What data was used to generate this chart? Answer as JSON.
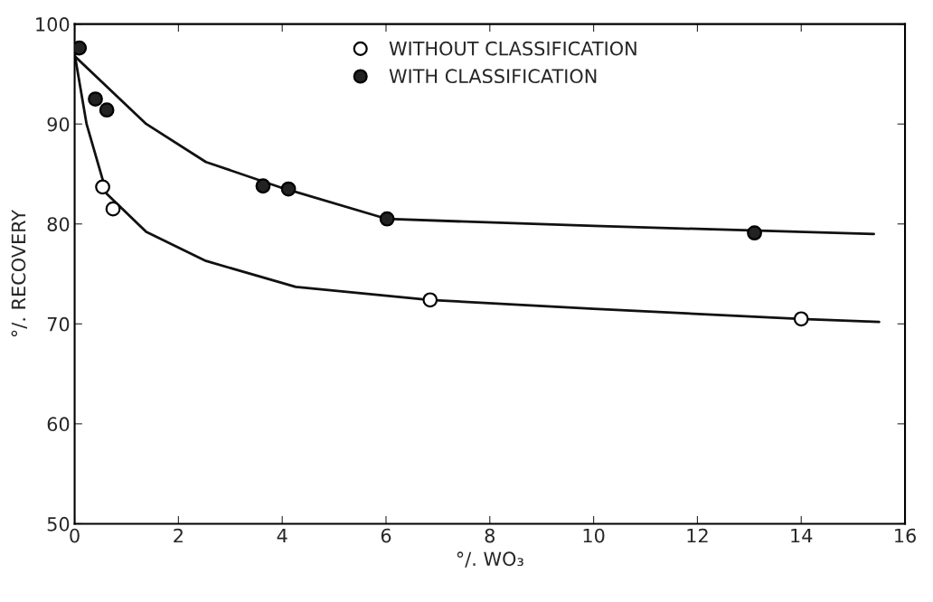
{
  "chart_data": {
    "type": "scatter",
    "xlabel": "°/. WO₃",
    "ylabel": "°/. RECOVERY",
    "xlim": [
      0,
      16
    ],
    "ylim": [
      50,
      100
    ],
    "xticks": [
      0,
      2,
      4,
      6,
      8,
      10,
      12,
      14,
      16
    ],
    "yticks": [
      50,
      60,
      70,
      80,
      90,
      100
    ],
    "grid": false,
    "legend": "top",
    "series": [
      {
        "name": "WITHOUT CLASSIFICATION",
        "marker": "circle",
        "color": "#ffffff",
        "x": [
          0.54,
          0.74,
          6.85,
          14.0
        ],
        "values": [
          83.7,
          81.5,
          72.4,
          70.5
        ]
      },
      {
        "name": "WITH CLASSIFICATION",
        "marker": "circle",
        "color": "#222222",
        "x": [
          0.09,
          0.4,
          0.62,
          3.63,
          4.12,
          6.02,
          13.1
        ],
        "values": [
          97.6,
          92.5,
          91.4,
          83.8,
          83.5,
          80.5,
          79.1
        ]
      },
      {
        "type": "line",
        "color": "#111111",
        "x": [
          0,
          0.23,
          0.62,
          1.38,
          2.53,
          4.26,
          6.85,
          10,
          14.0,
          15.5
        ],
        "values": [
          97,
          90,
          83.0,
          79.2,
          76.3,
          73.7,
          72.4,
          71.5,
          70.5,
          70.2
        ]
      },
      {
        "type": "line",
        "color": "#111111",
        "x": [
          0,
          1.38,
          2.53,
          4.0,
          6.02,
          10,
          15.4
        ],
        "values": [
          96.8,
          90,
          86.2,
          83.6,
          80.5,
          79.8,
          79.0
        ]
      }
    ]
  }
}
